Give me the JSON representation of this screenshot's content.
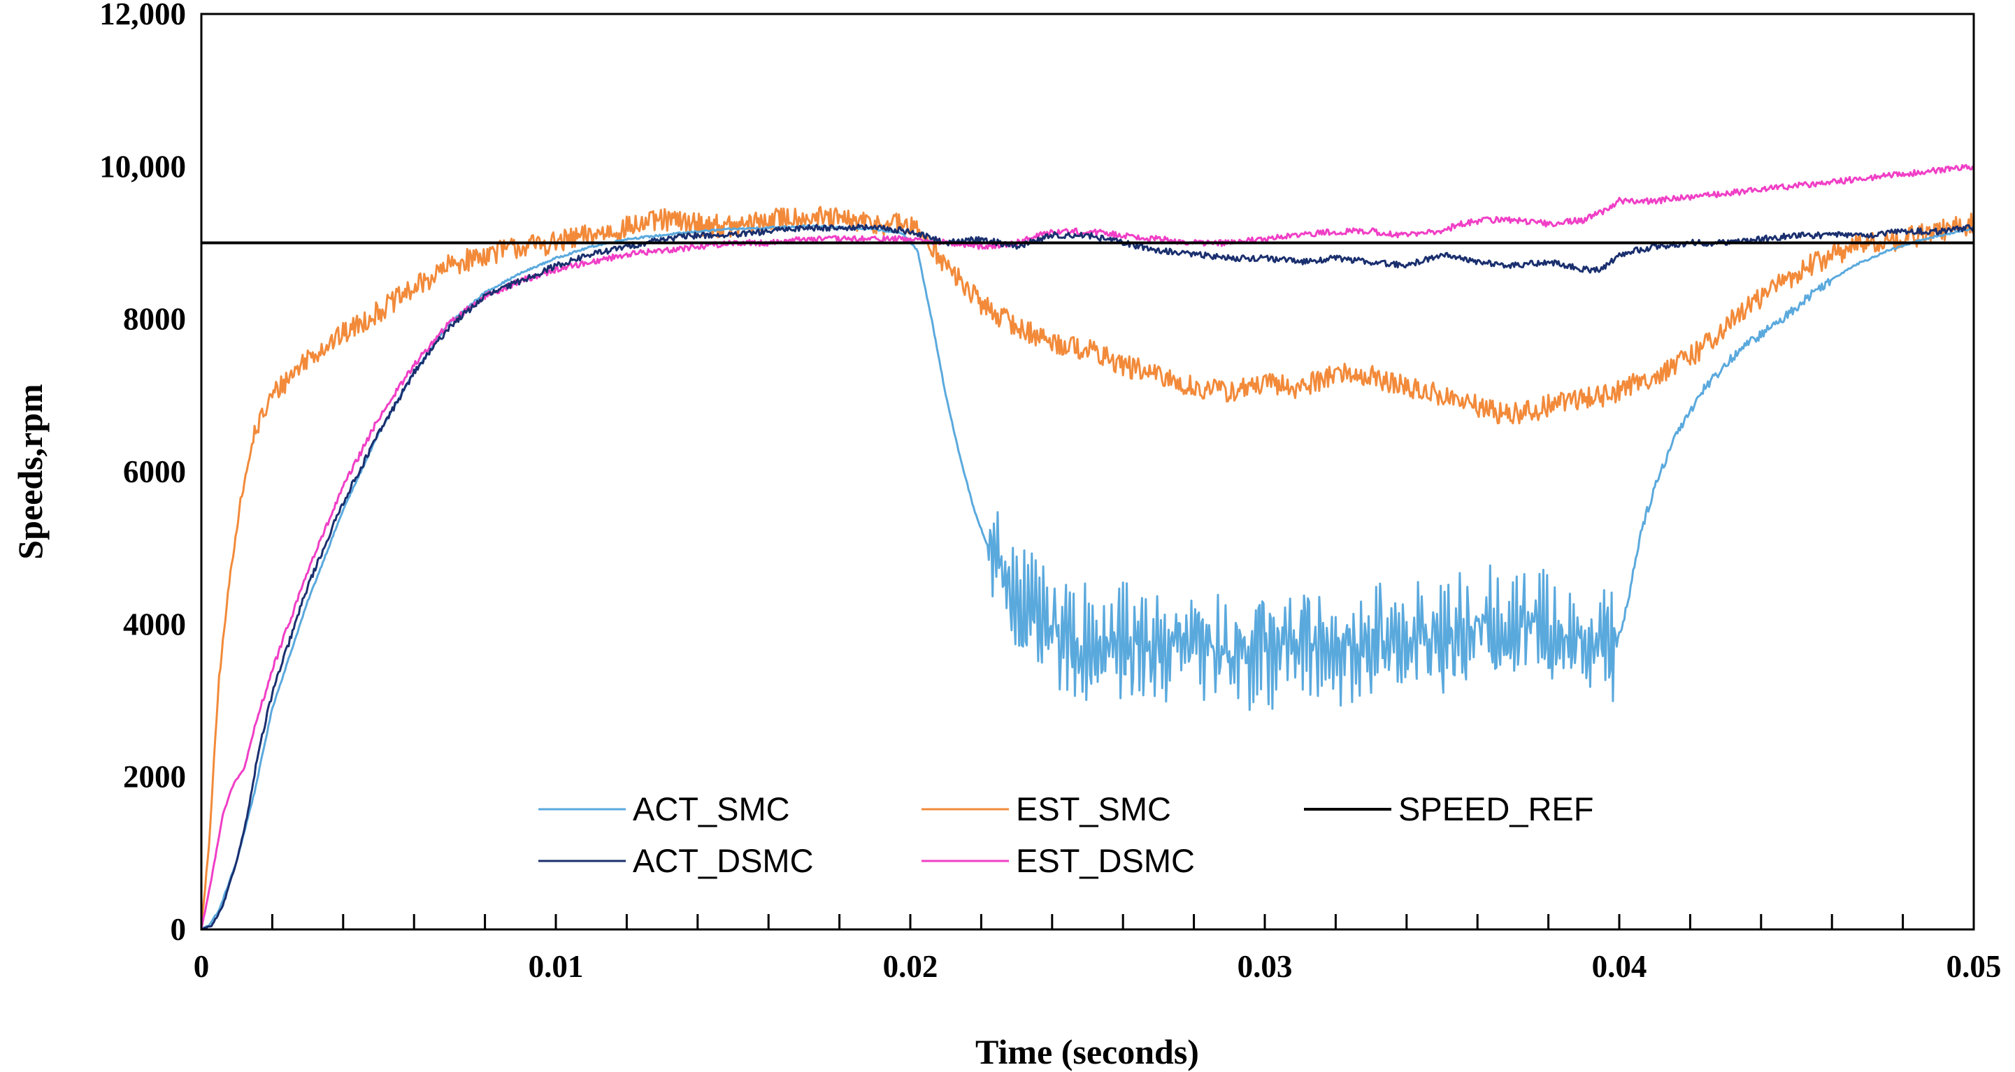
{
  "chart_data": {
    "type": "line",
    "title": "",
    "xlabel": "Time (seconds)",
    "ylabel": "Speeds,rpm",
    "xlim": [
      0,
      0.05
    ],
    "ylim": [
      0,
      12000
    ],
    "x_ticks": [
      0,
      0.01,
      0.02,
      0.03,
      0.04,
      0.05
    ],
    "x_tick_labels": [
      "0",
      "0.01",
      "0.02",
      "0.03",
      "0.04",
      "0.05"
    ],
    "x_minor_step": 0.002,
    "y_ticks": [
      0,
      2000,
      4000,
      6000,
      8000,
      10000,
      12000
    ],
    "y_tick_labels": [
      "0",
      "2000",
      "4000",
      "6000",
      "8000",
      "10,000",
      "12,000"
    ],
    "grid": false,
    "legend_position": "bottom-center",
    "series": [
      {
        "name": "ACT_SMC",
        "color": "#5aa9dd",
        "x": [
          0,
          0.0002,
          0.0005,
          0.001,
          0.0015,
          0.002,
          0.003,
          0.004,
          0.005,
          0.006,
          0.007,
          0.008,
          0.009,
          0.01,
          0.011,
          0.012,
          0.013,
          0.014,
          0.015,
          0.016,
          0.017,
          0.018,
          0.019,
          0.0198,
          0.0202,
          0.0206,
          0.021,
          0.0214,
          0.0218,
          0.0222,
          0.0228,
          0.0234,
          0.0242,
          0.025,
          0.026,
          0.027,
          0.028,
          0.029,
          0.03,
          0.031,
          0.032,
          0.033,
          0.034,
          0.035,
          0.036,
          0.037,
          0.038,
          0.039,
          0.0399,
          0.0402,
          0.0406,
          0.041,
          0.0416,
          0.0424,
          0.0434,
          0.0446,
          0.0456,
          0.0466,
          0.0476,
          0.0486,
          0.0496,
          0.05
        ],
        "values": [
          0,
          50,
          250,
          900,
          1800,
          2900,
          4300,
          5500,
          6500,
          7300,
          7950,
          8350,
          8600,
          8800,
          8950,
          9050,
          9100,
          9150,
          9180,
          9200,
          9220,
          9200,
          9180,
          9120,
          8900,
          8000,
          7000,
          6200,
          5500,
          5000,
          4500,
          4100,
          3800,
          3700,
          3750,
          3700,
          3800,
          3650,
          3700,
          3800,
          3700,
          3750,
          3850,
          3800,
          3900,
          4000,
          3950,
          3800,
          3700,
          4200,
          5200,
          5800,
          6500,
          7100,
          7600,
          8000,
          8400,
          8700,
          8900,
          9050,
          9150,
          9200
        ],
        "noise": 700
      },
      {
        "name": "EST_SMC",
        "color": "#f28a3a",
        "x": [
          0,
          0.0002,
          0.0005,
          0.0008,
          0.0011,
          0.0015,
          0.002,
          0.003,
          0.004,
          0.005,
          0.006,
          0.007,
          0.008,
          0.009,
          0.01,
          0.011,
          0.012,
          0.013,
          0.014,
          0.015,
          0.016,
          0.017,
          0.018,
          0.019,
          0.0198,
          0.0204,
          0.021,
          0.022,
          0.023,
          0.024,
          0.025,
          0.026,
          0.027,
          0.028,
          0.029,
          0.03,
          0.031,
          0.032,
          0.033,
          0.034,
          0.035,
          0.036,
          0.0368,
          0.0376,
          0.0386,
          0.0396,
          0.0404,
          0.0412,
          0.042,
          0.043,
          0.044,
          0.045,
          0.046,
          0.047,
          0.048,
          0.049,
          0.05
        ],
        "values": [
          0,
          1000,
          3300,
          4600,
          5600,
          6500,
          7000,
          7500,
          7800,
          8100,
          8400,
          8700,
          8850,
          8950,
          9000,
          9100,
          9200,
          9300,
          9250,
          9200,
          9300,
          9350,
          9300,
          9250,
          9250,
          9100,
          8700,
          8200,
          7900,
          7700,
          7600,
          7400,
          7250,
          7100,
          7050,
          7150,
          7100,
          7300,
          7250,
          7100,
          7000,
          6850,
          6750,
          6800,
          6950,
          7000,
          7150,
          7300,
          7500,
          7900,
          8300,
          8600,
          8850,
          9000,
          9050,
          9150,
          9250
        ],
        "noise": 150
      },
      {
        "name": "SPEED_REF",
        "color": "#000000",
        "x": [
          0,
          0.05
        ],
        "values": [
          9000,
          9000
        ],
        "noise": 0
      },
      {
        "name": "ACT_DSMC",
        "color": "#1a2f6e",
        "x": [
          0,
          0.0003,
          0.0006,
          0.001,
          0.0013,
          0.0016,
          0.002,
          0.003,
          0.004,
          0.005,
          0.006,
          0.007,
          0.008,
          0.009,
          0.01,
          0.011,
          0.012,
          0.013,
          0.014,
          0.015,
          0.016,
          0.017,
          0.018,
          0.019,
          0.02,
          0.021,
          0.022,
          0.023,
          0.024,
          0.025,
          0.026,
          0.027,
          0.028,
          0.029,
          0.03,
          0.031,
          0.032,
          0.033,
          0.034,
          0.035,
          0.036,
          0.037,
          0.038,
          0.039,
          0.0395,
          0.04,
          0.041,
          0.042,
          0.043,
          0.044,
          0.045,
          0.046,
          0.047,
          0.048,
          0.049,
          0.05
        ],
        "values": [
          0,
          50,
          300,
          900,
          1500,
          2300,
          3100,
          4500,
          5600,
          6500,
          7300,
          7900,
          8300,
          8500,
          8700,
          8850,
          8950,
          9050,
          9100,
          9100,
          9150,
          9200,
          9200,
          9200,
          9150,
          9000,
          9050,
          8950,
          9100,
          9100,
          9000,
          8900,
          8850,
          8800,
          8800,
          8750,
          8800,
          8750,
          8700,
          8850,
          8750,
          8700,
          8750,
          8650,
          8650,
          8850,
          8950,
          9000,
          9000,
          9050,
          9100,
          9100,
          9100,
          9150,
          9150,
          9200
        ],
        "noise": 40
      },
      {
        "name": "EST_DSMC",
        "color": "#f03fc6",
        "x": [
          0,
          0.0003,
          0.0006,
          0.0009,
          0.0012,
          0.0016,
          0.002,
          0.003,
          0.004,
          0.005,
          0.006,
          0.007,
          0.008,
          0.009,
          0.01,
          0.011,
          0.012,
          0.013,
          0.014,
          0.015,
          0.016,
          0.017,
          0.018,
          0.019,
          0.02,
          0.021,
          0.022,
          0.023,
          0.024,
          0.025,
          0.026,
          0.027,
          0.028,
          0.029,
          0.03,
          0.031,
          0.032,
          0.033,
          0.034,
          0.035,
          0.0355,
          0.0362,
          0.037,
          0.038,
          0.039,
          0.0395,
          0.04,
          0.041,
          0.042,
          0.043,
          0.044,
          0.045,
          0.046,
          0.047,
          0.048,
          0.049,
          0.05
        ],
        "values": [
          0,
          700,
          1500,
          1900,
          2100,
          2800,
          3400,
          4700,
          5800,
          6700,
          7400,
          7950,
          8300,
          8500,
          8650,
          8750,
          8850,
          8900,
          8950,
          9000,
          9000,
          9050,
          9050,
          9050,
          9050,
          9000,
          8950,
          9000,
          9150,
          9150,
          9100,
          9050,
          9000,
          9000,
          9050,
          9100,
          9150,
          9150,
          9100,
          9150,
          9250,
          9300,
          9300,
          9250,
          9300,
          9400,
          9550,
          9550,
          9600,
          9650,
          9700,
          9750,
          9800,
          9850,
          9900,
          9950,
          10000
        ],
        "noise": 40
      }
    ]
  }
}
